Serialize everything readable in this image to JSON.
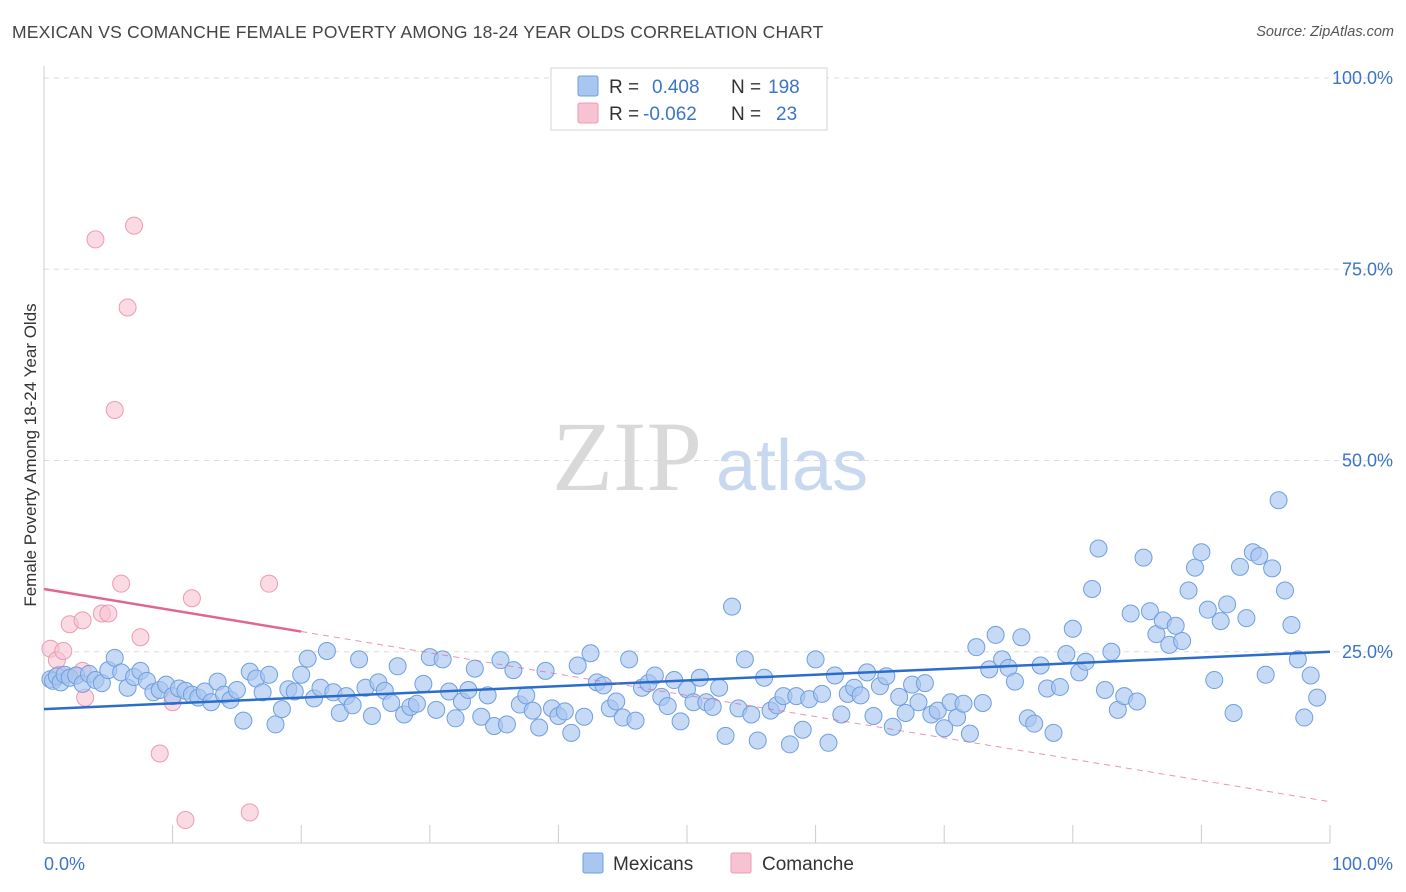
{
  "title": "MEXICAN VS COMANCHE FEMALE POVERTY AMONG 18-24 YEAR OLDS CORRELATION CHART",
  "source": "Source: ZipAtlas.com",
  "watermark": {
    "zip": "ZIP",
    "atlas": "atlas"
  },
  "colors": {
    "mexicans_fill": "#a9c6f0",
    "mexicans_stroke": "#6f9fe0",
    "mexicans_line": "#2a6dcc",
    "comanche_fill": "#f7c3d2",
    "comanche_stroke": "#ee9ab2",
    "comanche_line": "#e06690",
    "tick_text": "#3d74c6",
    "grid": "#dddddd"
  },
  "legend": {
    "row1": {
      "r_label": "R =",
      "r_value": "0.408",
      "n_label": "N =",
      "n_value": "198"
    },
    "row2": {
      "r_label": "R =",
      "r_value": "-0.062",
      "n_label": "N =",
      "n_value": "23"
    }
  },
  "chart_data": {
    "type": "scatter",
    "title": "MEXICAN VS COMANCHE FEMALE POVERTY AMONG 18-24 YEAR OLDS CORRELATION CHART",
    "xlabel": "",
    "ylabel": "Female Poverty Among 18-24 Year Olds",
    "xlim": [
      0,
      100
    ],
    "ylim": [
      0,
      100
    ],
    "x_tick_labels": [
      "0.0%",
      "100.0%"
    ],
    "y_ticks": [
      25,
      50,
      75,
      100
    ],
    "y_tick_labels": [
      "25.0%",
      "50.0%",
      "75.0%",
      "100.0%"
    ],
    "grid": true,
    "legend_position": "top-center",
    "series": [
      {
        "name": "Mexicans",
        "r": 0.408,
        "n": 198,
        "trend": {
          "x": [
            0,
            100
          ],
          "y": [
            17.5,
            25.0
          ]
        },
        "points": [
          [
            0.5,
            21.4
          ],
          [
            0.7,
            21.2
          ],
          [
            1,
            21.8
          ],
          [
            1.3,
            21.0
          ],
          [
            1.6,
            22.0
          ],
          [
            2,
            21.6
          ],
          [
            2.5,
            21.9
          ],
          [
            3,
            20.8
          ],
          [
            3.5,
            22.1
          ],
          [
            4,
            21.3
          ],
          [
            4.5,
            20.9
          ],
          [
            5,
            22.6
          ],
          [
            5.5,
            24.2
          ],
          [
            6,
            22.3
          ],
          [
            6.5,
            20.3
          ],
          [
            7,
            21.7
          ],
          [
            7.5,
            22.5
          ],
          [
            8,
            21.2
          ],
          [
            8.5,
            19.7
          ],
          [
            9,
            20.0
          ],
          [
            9.5,
            20.7
          ],
          [
            10,
            19.2
          ],
          [
            10.5,
            20.2
          ],
          [
            11,
            19.9
          ],
          [
            11.5,
            19.4
          ],
          [
            12,
            19.0
          ],
          [
            12.5,
            19.8
          ],
          [
            13,
            18.4
          ],
          [
            13.5,
            21.1
          ],
          [
            14,
            19.4
          ],
          [
            14.5,
            18.7
          ],
          [
            15,
            20.0
          ],
          [
            15.5,
            16.0
          ],
          [
            16,
            22.4
          ],
          [
            16.5,
            21.5
          ],
          [
            17,
            19.7
          ],
          [
            17.5,
            22.0
          ],
          [
            18,
            15.5
          ],
          [
            18.5,
            17.5
          ],
          [
            19,
            20.1
          ],
          [
            19.5,
            19.8
          ],
          [
            20,
            22.0
          ],
          [
            20.5,
            24.1
          ],
          [
            21,
            18.9
          ],
          [
            21.5,
            20.3
          ],
          [
            22,
            25.1
          ],
          [
            22.5,
            19.7
          ],
          [
            23,
            17.0
          ],
          [
            23.5,
            19.2
          ],
          [
            24,
            18.0
          ],
          [
            24.5,
            24.0
          ],
          [
            25,
            20.3
          ],
          [
            25.5,
            16.6
          ],
          [
            26,
            21.0
          ],
          [
            26.5,
            19.9
          ],
          [
            27,
            18.3
          ],
          [
            27.5,
            23.1
          ],
          [
            28,
            16.8
          ],
          [
            28.5,
            17.8
          ],
          [
            29,
            18.2
          ],
          [
            29.5,
            20.8
          ],
          [
            30,
            24.3
          ],
          [
            30.5,
            17.4
          ],
          [
            31,
            24.0
          ],
          [
            31.5,
            19.8
          ],
          [
            32,
            16.3
          ],
          [
            32.5,
            18.5
          ],
          [
            33,
            20.0
          ],
          [
            33.5,
            22.8
          ],
          [
            34,
            16.5
          ],
          [
            34.5,
            19.3
          ],
          [
            35,
            15.3
          ],
          [
            35.5,
            23.9
          ],
          [
            36,
            15.5
          ],
          [
            36.5,
            22.6
          ],
          [
            37,
            18.1
          ],
          [
            37.5,
            19.3
          ],
          [
            38,
            17.3
          ],
          [
            38.5,
            15.1
          ],
          [
            39,
            22.5
          ],
          [
            39.5,
            17.6
          ],
          [
            40,
            16.6
          ],
          [
            40.5,
            17.2
          ],
          [
            41,
            14.4
          ],
          [
            41.5,
            23.2
          ],
          [
            42,
            16.5
          ],
          [
            42.5,
            24.8
          ],
          [
            43,
            21.0
          ],
          [
            43.5,
            20.6
          ],
          [
            44,
            17.6
          ],
          [
            44.5,
            18.5
          ],
          [
            45,
            16.4
          ],
          [
            45.5,
            24.0
          ],
          [
            46,
            16.0
          ],
          [
            46.5,
            20.3
          ],
          [
            47,
            20.9
          ],
          [
            47.5,
            21.9
          ],
          [
            48,
            19.1
          ],
          [
            48.5,
            17.9
          ],
          [
            49,
            21.3
          ],
          [
            49.5,
            15.9
          ],
          [
            50,
            20.1
          ],
          [
            50.5,
            18.4
          ],
          [
            51,
            21.6
          ],
          [
            51.5,
            18.4
          ],
          [
            52,
            17.8
          ],
          [
            52.5,
            20.3
          ],
          [
            53,
            14.0
          ],
          [
            53.5,
            30.9
          ],
          [
            54,
            17.6
          ],
          [
            54.5,
            24.0
          ],
          [
            55,
            16.8
          ],
          [
            55.5,
            13.4
          ],
          [
            56,
            21.6
          ],
          [
            56.5,
            17.3
          ],
          [
            57,
            18.0
          ],
          [
            57.5,
            19.2
          ],
          [
            58,
            12.9
          ],
          [
            58.5,
            19.2
          ],
          [
            59,
            14.8
          ],
          [
            59.5,
            18.8
          ],
          [
            60,
            24.0
          ],
          [
            60.5,
            19.5
          ],
          [
            61,
            13.1
          ],
          [
            61.5,
            21.9
          ],
          [
            62,
            16.8
          ],
          [
            62.5,
            19.5
          ],
          [
            63,
            20.3
          ],
          [
            63.5,
            19.3
          ],
          [
            64,
            22.3
          ],
          [
            64.5,
            16.6
          ],
          [
            65,
            20.5
          ],
          [
            65.5,
            21.8
          ],
          [
            66,
            15.2
          ],
          [
            66.5,
            19.1
          ],
          [
            67,
            17.0
          ],
          [
            67.5,
            20.7
          ],
          [
            68,
            18.4
          ],
          [
            68.5,
            20.9
          ],
          [
            69,
            16.8
          ],
          [
            69.5,
            17.3
          ],
          [
            70,
            15.0
          ],
          [
            70.5,
            18.4
          ],
          [
            71,
            16.4
          ],
          [
            71.5,
            18.2
          ],
          [
            72,
            14.3
          ],
          [
            72.5,
            25.6
          ],
          [
            73,
            18.3
          ],
          [
            73.5,
            22.7
          ],
          [
            74,
            27.2
          ],
          [
            74.5,
            24.0
          ],
          [
            75,
            22.9
          ],
          [
            75.5,
            21.1
          ],
          [
            76,
            26.9
          ],
          [
            76.5,
            16.3
          ],
          [
            77,
            15.6
          ],
          [
            77.5,
            23.2
          ],
          [
            78,
            20.2
          ],
          [
            78.5,
            14.4
          ],
          [
            79,
            20.4
          ],
          [
            79.5,
            24.7
          ],
          [
            80,
            28.0
          ],
          [
            80.5,
            22.3
          ],
          [
            81,
            23.7
          ],
          [
            81.5,
            33.2
          ],
          [
            82,
            38.5
          ],
          [
            82.5,
            20.0
          ],
          [
            83,
            25.0
          ],
          [
            83.5,
            17.4
          ],
          [
            84,
            19.2
          ],
          [
            84.5,
            30.0
          ],
          [
            85,
            18.5
          ],
          [
            85.5,
            37.3
          ],
          [
            86,
            30.3
          ],
          [
            86.5,
            27.3
          ],
          [
            87,
            29.1
          ],
          [
            87.5,
            25.9
          ],
          [
            88,
            28.4
          ],
          [
            88.5,
            26.4
          ],
          [
            89,
            33.0
          ],
          [
            89.5,
            36.0
          ],
          [
            90,
            38.0
          ],
          [
            90.5,
            30.5
          ],
          [
            91,
            21.3
          ],
          [
            91.5,
            29.0
          ],
          [
            92,
            31.2
          ],
          [
            92.5,
            17.0
          ],
          [
            93,
            36.1
          ],
          [
            93.5,
            29.4
          ],
          [
            94,
            38.0
          ],
          [
            94.5,
            37.5
          ],
          [
            95,
            22.0
          ],
          [
            95.5,
            35.9
          ],
          [
            96,
            44.8
          ],
          [
            96.5,
            33.0
          ],
          [
            97,
            28.5
          ],
          [
            97.5,
            24.0
          ],
          [
            98,
            16.4
          ],
          [
            98.5,
            21.9
          ],
          [
            99,
            19.0
          ]
        ]
      },
      {
        "name": "Comanche",
        "r": -0.062,
        "n": 23,
        "trend": {
          "x": [
            0,
            100
          ],
          "y": [
            33.2,
            5.4
          ],
          "solid_until_x": 20
        },
        "points": [
          [
            0.5,
            25.4
          ],
          [
            1,
            23.9
          ],
          [
            1.2,
            22.0
          ],
          [
            1.5,
            25.1
          ],
          [
            2,
            28.6
          ],
          [
            2.5,
            21.9
          ],
          [
            3,
            29.1
          ],
          [
            3,
            22.5
          ],
          [
            3.2,
            19.0
          ],
          [
            4,
            78.9
          ],
          [
            4.5,
            30.0
          ],
          [
            5,
            30.0
          ],
          [
            5.5,
            56.6
          ],
          [
            6,
            33.9
          ],
          [
            6.5,
            70.0
          ],
          [
            7,
            80.7
          ],
          [
            7.5,
            26.9
          ],
          [
            9,
            11.7
          ],
          [
            10,
            18.4
          ],
          [
            11,
            3.0
          ],
          [
            11.5,
            32.0
          ],
          [
            16,
            4.0
          ],
          [
            17.5,
            33.9
          ]
        ]
      }
    ]
  },
  "bottom_legend": {
    "mexicans": "Mexicans",
    "comanche": "Comanche"
  }
}
